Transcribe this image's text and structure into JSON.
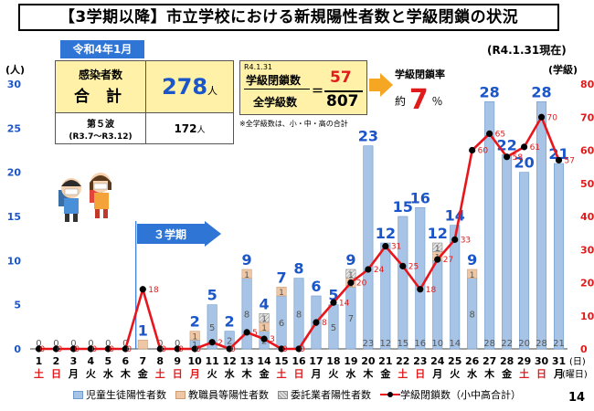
{
  "title": "【3学期以降】市立学校における新規陽性者数と学級閉鎖の状況",
  "month_badge": "令和4年1月",
  "as_of": "(R4.1.31現在)",
  "unit_left": "(人)",
  "unit_right": "(学級)",
  "cases_box": {
    "label_top": "感染者数",
    "label_main": "合 計",
    "total": "278",
    "unit": "人",
    "wave_label": "第５波",
    "wave_period": "(R3.7〜R3.12)",
    "wave_total": "172",
    "wave_unit": "人"
  },
  "closure_box": {
    "date": "R4.1.31",
    "numerator_label": "学級閉鎖数",
    "denominator_label": "全学級数",
    "eq": "＝",
    "numerator": "57",
    "denominator": "807"
  },
  "note": "※全学級数は、小・中・高の合計",
  "rate": {
    "title": "学級閉鎖率",
    "prefix": "約",
    "value": "7",
    "unit": "％"
  },
  "term_label": "３学期",
  "page_number": "14",
  "colors": {
    "student": "#a7c4e6",
    "staff": "#f0c7a4",
    "contractor": "#d9d9d9",
    "line": "#e8161c",
    "accent": "#2e75d6",
    "highlight": "#fff2a8"
  },
  "chart_data": {
    "type": "bar+line",
    "xlabel": "(日)",
    "x_extra_label": "(曜日)",
    "days": [
      "1",
      "2",
      "3",
      "4",
      "5",
      "6",
      "7",
      "8",
      "9",
      "10",
      "11",
      "12",
      "13",
      "14",
      "15",
      "16",
      "17",
      "18",
      "19",
      "20",
      "21",
      "22",
      "23",
      "24",
      "25",
      "26",
      "27",
      "28",
      "29",
      "30",
      "31"
    ],
    "weekdays": [
      "土",
      "日",
      "月",
      "火",
      "水",
      "木",
      "金",
      "土",
      "日",
      "月",
      "火",
      "水",
      "木",
      "金",
      "土",
      "日",
      "月",
      "火",
      "水",
      "木",
      "金",
      "土",
      "日",
      "月",
      "火",
      "水",
      "木",
      "金",
      "土",
      "日",
      "月"
    ],
    "weekday_colors": [
      "red",
      "red",
      "black",
      "black",
      "black",
      "black",
      "black",
      "red",
      "red",
      "red",
      "black",
      "black",
      "black",
      "black",
      "red",
      "red",
      "black",
      "black",
      "black",
      "black",
      "black",
      "red",
      "red",
      "black",
      "black",
      "black",
      "black",
      "black",
      "red",
      "red",
      "black"
    ],
    "left_axis": {
      "min": 0,
      "max": 30,
      "ticks": [
        0,
        5,
        10,
        15,
        20,
        25,
        30
      ]
    },
    "right_axis": {
      "min": 0,
      "max": 80,
      "ticks": [
        0,
        10,
        20,
        30,
        40,
        50,
        60,
        70,
        80
      ]
    },
    "stack_series": [
      {
        "name": "児童生徒陽性者数",
        "values": [
          0,
          0,
          0,
          0,
          0,
          0,
          0,
          0,
          0,
          1,
          5,
          2,
          8,
          2,
          6,
          8,
          6,
          5,
          7,
          23,
          12,
          15,
          16,
          10,
          14,
          8,
          28,
          22,
          20,
          28,
          21
        ]
      },
      {
        "name": "教職員等陽性者数",
        "values": [
          0,
          0,
          0,
          0,
          0,
          0,
          1,
          0,
          0,
          1,
          0,
          0,
          1,
          1,
          1,
          0,
          0,
          0,
          1,
          0,
          0,
          0,
          0,
          1,
          0,
          1,
          0,
          0,
          0,
          0,
          0
        ]
      },
      {
        "name": "委託業者陽性者数",
        "values": [
          0,
          0,
          0,
          0,
          0,
          0,
          0,
          0,
          0,
          0,
          0,
          0,
          0,
          1,
          0,
          0,
          0,
          0,
          1,
          0,
          0,
          0,
          0,
          1,
          0,
          0,
          0,
          0,
          0,
          0,
          0
        ]
      }
    ],
    "bar_top_labels": [
      "",
      "",
      "",
      "",
      "",
      "",
      "1",
      "",
      "",
      "2",
      "5",
      "2",
      "9",
      "4",
      "7",
      "8",
      "6",
      "5",
      "9",
      "23",
      "12",
      "15",
      "16",
      "12",
      "14",
      "9",
      "28",
      "22",
      "20",
      "28",
      "21"
    ],
    "bar_inner_student": [
      "",
      "",
      "",
      "",
      "",
      "",
      "",
      "",
      "",
      "1",
      "5",
      "2",
      "8",
      "2",
      "6",
      "8",
      "6",
      "5",
      "7",
      "23",
      "12",
      "15",
      "16",
      "10",
      "14",
      "8",
      "28",
      "22",
      "20",
      "28",
      "21"
    ],
    "bar_inner_staff": [
      "",
      "",
      "",
      "",
      "",
      "",
      "",
      "",
      "",
      "1",
      "",
      "",
      "1",
      "1",
      "1",
      "",
      "",
      "",
      "1",
      "",
      "",
      "",
      "",
      "1",
      "",
      "1",
      "",
      "",
      "",
      "",
      ""
    ],
    "bar_inner_contractor": [
      "",
      "",
      "",
      "",
      "",
      "",
      "",
      "",
      "",
      "",
      "",
      "",
      "",
      "1",
      "",
      "",
      "",
      "",
      "1",
      "",
      "",
      "",
      "",
      "1",
      "",
      "",
      "",
      "",
      "",
      "",
      ""
    ],
    "zero_labels": [
      "0",
      "0",
      "0",
      "0",
      "0",
      "0",
      "",
      "0",
      "0",
      "",
      "",
      "",
      "",
      "",
      "",
      "",
      "",
      "",
      "",
      "",
      "",
      "",
      "",
      "",
      "",
      "",
      "",
      "",
      "",
      "",
      ""
    ],
    "line_series": {
      "name": "学級閉鎖数（小中高合計）",
      "values": [
        0,
        0,
        0,
        0,
        0,
        0,
        18,
        0,
        0,
        0,
        2,
        0,
        5,
        3,
        0,
        0,
        8,
        14,
        20,
        24,
        31,
        25,
        18,
        27,
        33,
        60,
        65,
        58,
        61,
        70,
        57
      ]
    }
  }
}
